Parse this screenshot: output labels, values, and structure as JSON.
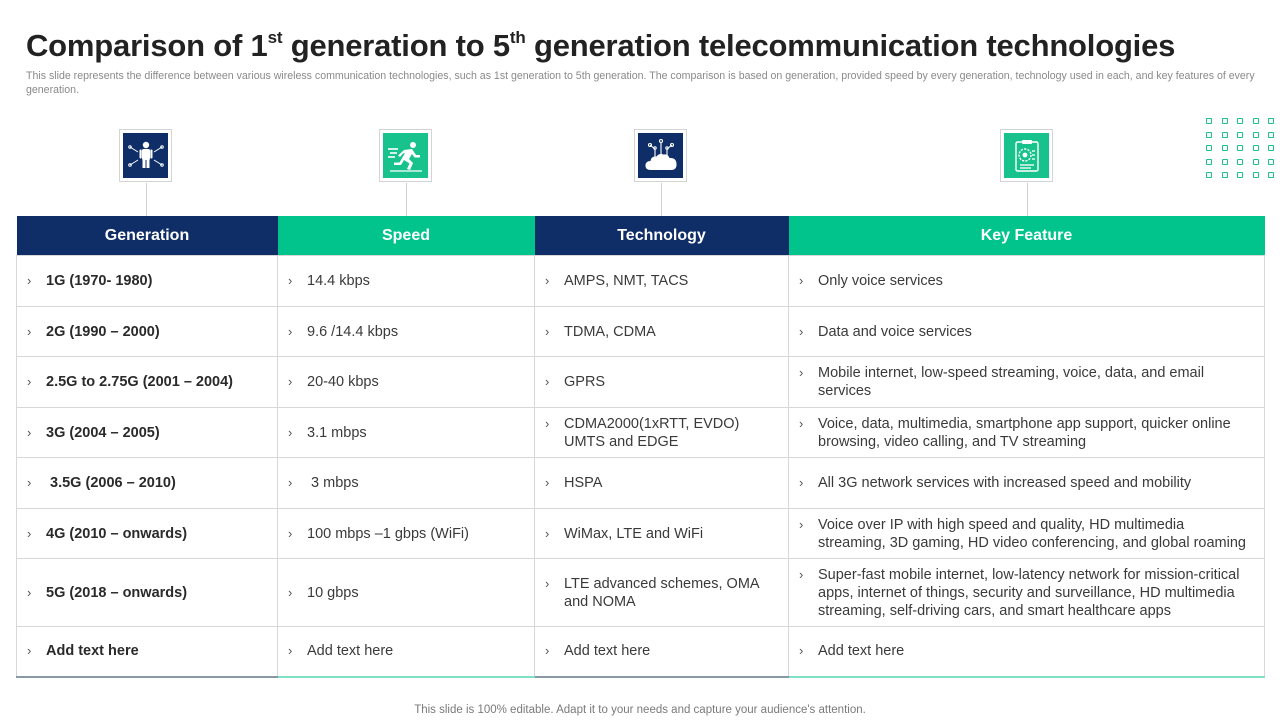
{
  "title": {
    "part1": "Comparison of 1",
    "sup1": "st",
    "part2": " generation to 5",
    "sup2": "th",
    "part3": " generation telecommunication technologies"
  },
  "subtitle": "This slide represents the difference between various wireless communication technologies, such as 1st generation to 5th generation. The comparison is based on generation, provided speed by every generation, technology used in each, and key features of every  generation.",
  "icons": [
    {
      "name": "person-network-icon",
      "color": "#0f2e68"
    },
    {
      "name": "running-speed-icon",
      "color": "#18c28c"
    },
    {
      "name": "cloud-network-icon",
      "color": "#0f2e68"
    },
    {
      "name": "document-gear-icon",
      "color": "#18c28c"
    }
  ],
  "colors": {
    "navy": "#0f2e68",
    "green": "#00c48c"
  },
  "table": {
    "headers": [
      "Generation",
      "Speed",
      "Technology",
      "Key Feature"
    ],
    "rows": [
      [
        "1G (1970- 1980)",
        "14.4 kbps",
        "AMPS, NMT, TACS",
        "Only voice services"
      ],
      [
        "2G (1990 – 2000)",
        "9.6 /14.4 kbps",
        "TDMA, CDMA",
        "Data and voice services"
      ],
      [
        "2.5G to 2.75G (2001 – 2004)",
        "20-40 kbps",
        "GPRS",
        "Mobile internet, low-speed streaming, voice, data, and email services"
      ],
      [
        "3G (2004 – 2005)",
        "3.1 mbps",
        "CDMA2000(1xRTT, EVDO) UMTS and EDGE",
        "Voice, data, multimedia, smartphone app support, quicker online browsing, video calling, and TV streaming"
      ],
      [
        " 3.5G (2006 – 2010)",
        " 3 mbps",
        "HSPA",
        "All 3G network services with increased speed and mobility"
      ],
      [
        "4G (2010 – onwards)",
        "100 mbps –1 gbps (WiFi)",
        "WiMax, LTE and WiFi",
        "Voice over IP with high speed and quality, HD multimedia streaming, 3D gaming, HD video conferencing, and global roaming"
      ],
      [
        "5G (2018 – onwards)",
        "10 gbps",
        "LTE advanced schemes, OMA and NOMA",
        "Super-fast mobile internet, low-latency network for mission-critical apps, internet of things, security and surveillance, HD multimedia streaming, self-driving cars, and smart healthcare apps"
      ],
      [
        "Add text here",
        "Add text here",
        "Add text here",
        "Add text here"
      ]
    ]
  },
  "footer": "This slide is 100% editable. Adapt it to your needs and capture your audience's attention."
}
